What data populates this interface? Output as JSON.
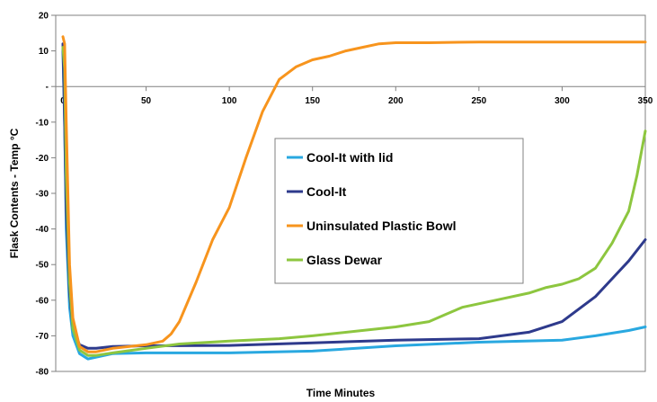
{
  "chart_data": {
    "type": "line",
    "title": "",
    "xlabel": "Time Minutes",
    "ylabel": "Flask Contents - Temp °C",
    "xlim": [
      0,
      350
    ],
    "ylim": [
      -80,
      20
    ],
    "x_ticks": [
      0,
      50,
      100,
      150,
      200,
      250,
      300,
      350
    ],
    "x_tick_labels": [
      "0",
      "50",
      "100",
      "150",
      "200",
      "250",
      "300",
      "350"
    ],
    "y_ticks": [
      20,
      10,
      0,
      -10,
      -20,
      -30,
      -40,
      -50,
      -60,
      -70,
      -80
    ],
    "y_tick_labels": [
      "20",
      "10",
      "-",
      "-10",
      "-20",
      "-30",
      "-40",
      "-50",
      "-60",
      "-70",
      "-80"
    ],
    "grid": false,
    "legend_position": "center",
    "series": [
      {
        "name": "Cool-It with lid",
        "color": "#29A8E0",
        "x": [
          0,
          1,
          2,
          4,
          6,
          10,
          15,
          20,
          30,
          50,
          100,
          150,
          200,
          250,
          300,
          320,
          340,
          350
        ],
        "y": [
          10,
          -10,
          -40,
          -62,
          -70,
          -75,
          -76.5,
          -76,
          -75,
          -74.8,
          -74.8,
          -74.3,
          -72.8,
          -71.8,
          -71.2,
          -70,
          -68.5,
          -67.5
        ]
      },
      {
        "name": "Cool-It",
        "color": "#2E3A8C",
        "x": [
          0,
          1,
          2,
          4,
          6,
          10,
          15,
          20,
          30,
          50,
          100,
          150,
          200,
          250,
          280,
          300,
          320,
          330,
          340,
          350
        ],
        "y": [
          12,
          -10,
          -35,
          -58,
          -68,
          -72.5,
          -73.5,
          -73.5,
          -73,
          -72.8,
          -72.7,
          -72,
          -71.2,
          -70.8,
          -69,
          -66,
          -59,
          -54,
          -49,
          -43
        ]
      },
      {
        "name": "Uninsulated Plastic Bowl",
        "color": "#F7941D",
        "x": [
          0,
          1,
          2,
          4,
          6,
          10,
          15,
          20,
          30,
          50,
          60,
          65,
          70,
          80,
          90,
          100,
          110,
          120,
          130,
          140,
          150,
          160,
          170,
          180,
          190,
          200,
          220,
          250,
          300,
          350
        ],
        "y": [
          14,
          12,
          -10,
          -50,
          -65,
          -73,
          -74.5,
          -74.5,
          -73.5,
          -72.5,
          -71.5,
          -69.5,
          -66,
          -55,
          -43,
          -34,
          -20,
          -7,
          2,
          5.5,
          7.5,
          8.5,
          10,
          11,
          12,
          12.3,
          12.3,
          12.5,
          12.5,
          12.5
        ]
      },
      {
        "name": "Glass Dewar",
        "color": "#8DC63F",
        "x": [
          0,
          1,
          2,
          4,
          6,
          10,
          15,
          20,
          30,
          50,
          70,
          100,
          130,
          150,
          200,
          220,
          230,
          240,
          260,
          280,
          290,
          300,
          310,
          320,
          330,
          340,
          345,
          350
        ],
        "y": [
          11,
          5,
          -25,
          -55,
          -68,
          -74,
          -75.5,
          -75.5,
          -74.8,
          -73.5,
          -72.3,
          -71.5,
          -70.8,
          -70,
          -67.5,
          -66,
          -64,
          -62,
          -60,
          -58,
          -56.5,
          -55.5,
          -54,
          -51,
          -44,
          -35,
          -25,
          -12.5
        ]
      }
    ]
  }
}
